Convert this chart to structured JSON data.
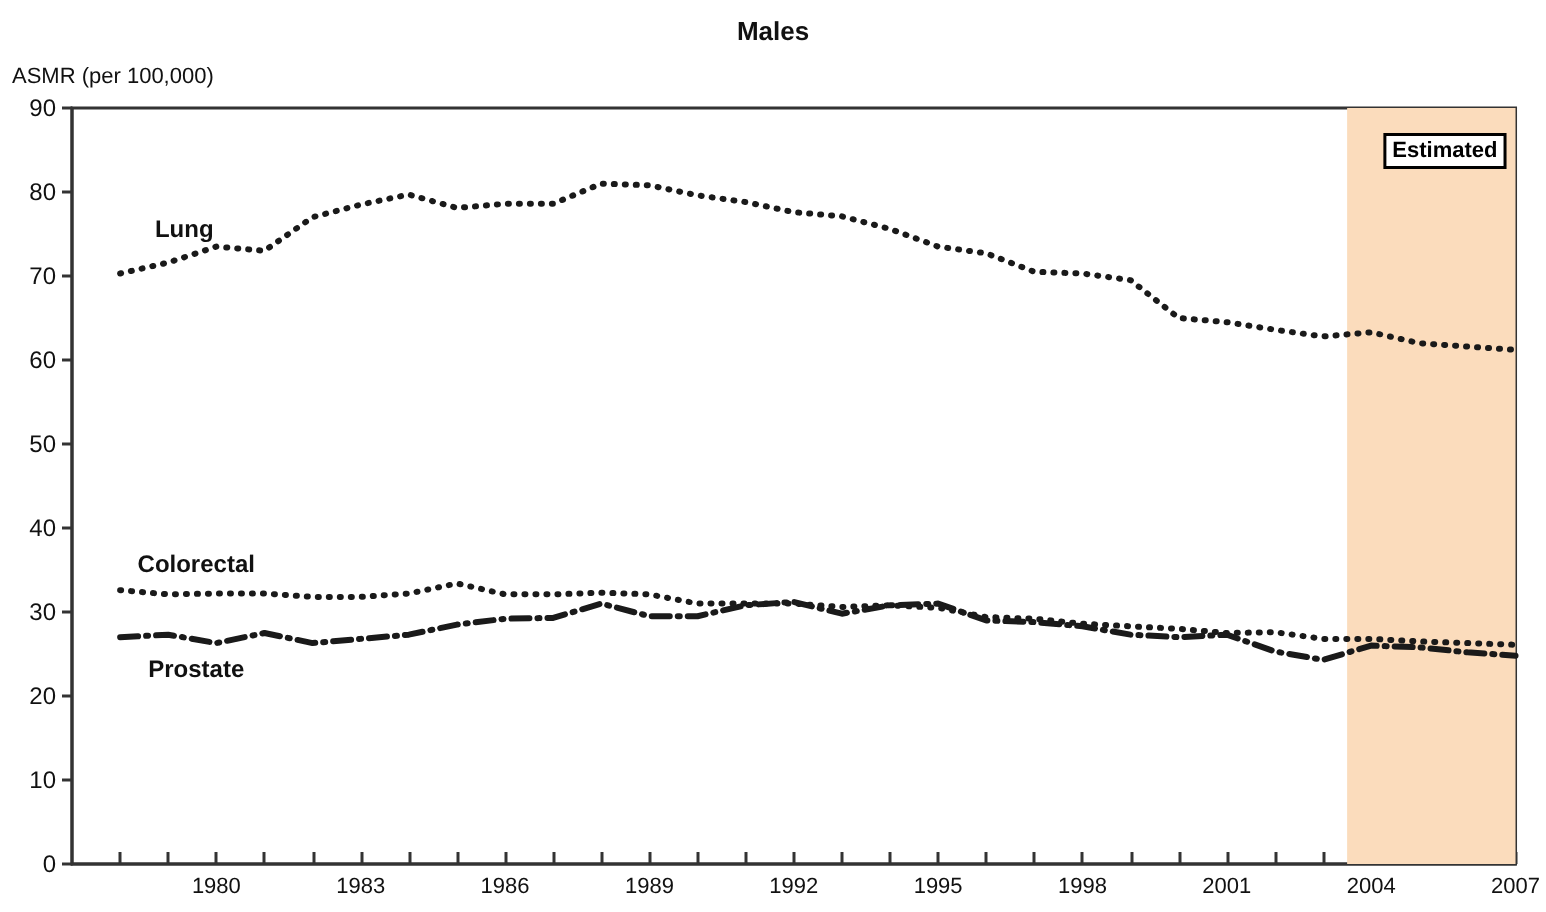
{
  "chart_data": {
    "type": "line",
    "title": "Males",
    "ylabel": "ASMR (per 100,000)",
    "x": [
      1978,
      1979,
      1980,
      1981,
      1982,
      1983,
      1984,
      1985,
      1986,
      1987,
      1988,
      1989,
      1990,
      1991,
      1992,
      1993,
      1994,
      1995,
      1996,
      1997,
      1998,
      1999,
      2000,
      2001,
      2002,
      2003,
      2004,
      2005,
      2006,
      2007
    ],
    "series": [
      {
        "name": "Lung",
        "color": "#1a1a1a",
        "line_style": "dotted",
        "values": [
          70.3,
          71.6,
          73.5,
          73.0,
          77.0,
          78.5,
          79.7,
          78.1,
          78.6,
          78.6,
          81.0,
          80.8,
          79.6,
          78.8,
          77.6,
          77.1,
          75.6,
          73.5,
          72.7,
          70.5,
          70.3,
          69.5,
          65.0,
          64.5,
          63.6,
          62.8,
          63.3,
          62.0,
          61.6,
          61.2
        ]
      },
      {
        "name": "Colorectal",
        "color": "#1a1a1a",
        "line_style": "dotted",
        "values": [
          32.6,
          32.1,
          32.2,
          32.2,
          31.8,
          31.8,
          32.2,
          33.4,
          32.1,
          32.1,
          32.3,
          32.1,
          31.0,
          31.0,
          31.0,
          30.6,
          30.8,
          30.5,
          29.4,
          29.2,
          28.6,
          28.3,
          28.0,
          27.5,
          27.6,
          26.8,
          26.8,
          26.5,
          26.3,
          26.1
        ]
      },
      {
        "name": "Prostate",
        "color": "#1a1a1a",
        "line_style": "dashed",
        "values": [
          27.0,
          27.3,
          26.3,
          27.5,
          26.3,
          26.8,
          27.3,
          28.5,
          29.2,
          29.3,
          31.0,
          29.5,
          29.5,
          30.8,
          31.2,
          29.8,
          30.8,
          31.0,
          29.0,
          28.8,
          28.3,
          27.3,
          27.0,
          27.3,
          25.3,
          24.3,
          26.0,
          25.8,
          25.2,
          24.8
        ]
      }
    ],
    "xlim": [
      1977,
      2007
    ],
    "xticks": [
      {
        "value": 1978,
        "label": null
      },
      {
        "value": 1979,
        "label": null
      },
      1980,
      {
        "value": 1981,
        "label": null
      },
      {
        "value": 1982,
        "label": null
      },
      1983,
      {
        "value": 1984,
        "label": null
      },
      {
        "value": 1985,
        "label": null
      },
      1986,
      {
        "value": 1987,
        "label": null
      },
      {
        "value": 1988,
        "label": null
      },
      1989,
      {
        "value": 1990,
        "label": null
      },
      {
        "value": 1991,
        "label": null
      },
      1992,
      {
        "value": 1993,
        "label": null
      },
      {
        "value": 1994,
        "label": null
      },
      1995,
      {
        "value": 1996,
        "label": null
      },
      {
        "value": 1997,
        "label": null
      },
      1998,
      {
        "value": 1999,
        "label": null
      },
      {
        "value": 2000,
        "label": null
      },
      2001,
      {
        "value": 2002,
        "label": null
      },
      {
        "value": 2003,
        "label": null
      },
      2004,
      {
        "value": 2005,
        "label": null
      },
      {
        "value": 2006,
        "label": null
      },
      2007
    ],
    "ylim": [
      0,
      90
    ],
    "yticks": [
      0,
      10,
      20,
      30,
      40,
      50,
      60,
      70,
      80,
      90
    ],
    "bands": [
      {
        "axis": "x",
        "from": 2003.5,
        "to": 2007,
        "label": "Estimated",
        "color": "#fbdcbc"
      }
    ],
    "grid": false,
    "legend": false
  }
}
